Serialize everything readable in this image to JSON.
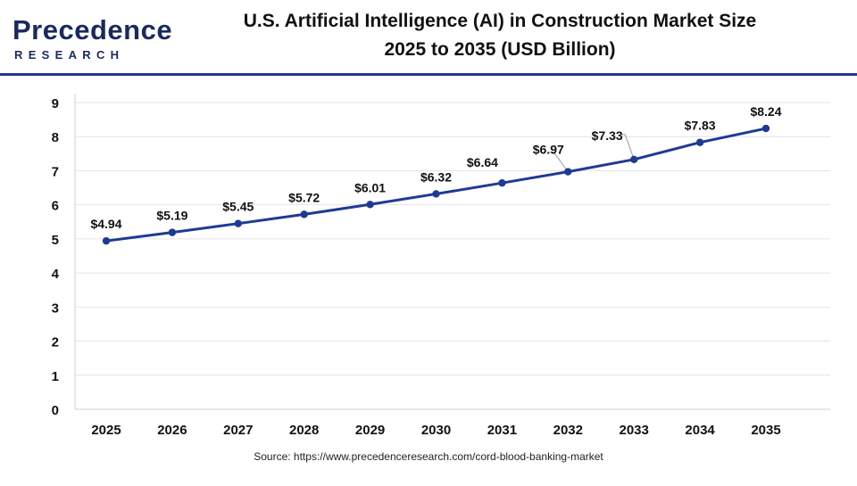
{
  "header": {
    "logo_text": "Precedence",
    "logo_subtext": "RESEARCH",
    "title_line1": "U.S. Artificial Intelligence (AI) in Construction Market Size",
    "title_line2": "2025 to 2035 (USD Billion)"
  },
  "footer": {
    "source": "Source: https://www.precedenceresearch.com/cord-blood-banking-market"
  },
  "colors": {
    "line": "#1f3a93",
    "marker": "#1f3a93",
    "accent": "#1f3a93",
    "grid": "#e4e4e4"
  },
  "chart_data": {
    "type": "line",
    "title": "U.S. Artificial Intelligence (AI) in Construction Market Size 2025 to 2035 (USD Billion)",
    "xlabel": "",
    "ylabel": "",
    "categories": [
      "2025",
      "2026",
      "2027",
      "2028",
      "2029",
      "2030",
      "2031",
      "2032",
      "2033",
      "2034",
      "2035"
    ],
    "series": [
      {
        "name": "Market Size (USD Billion)",
        "values": [
          4.94,
          5.19,
          5.45,
          5.72,
          6.01,
          6.32,
          6.64,
          6.97,
          7.33,
          7.83,
          8.24
        ],
        "labels": [
          "$4.94",
          "$5.19",
          "$5.45",
          "$5.72",
          "$6.01",
          "$6.32",
          "$6.64",
          "$6.97",
          "$7.33",
          "$7.83",
          "$8.24"
        ]
      }
    ],
    "ylim": [
      0,
      9
    ],
    "yticks": [
      "0",
      "1",
      "2",
      "3",
      "4",
      "5",
      "6",
      "7",
      "8",
      "9"
    ],
    "grid": true,
    "legend": "none"
  }
}
